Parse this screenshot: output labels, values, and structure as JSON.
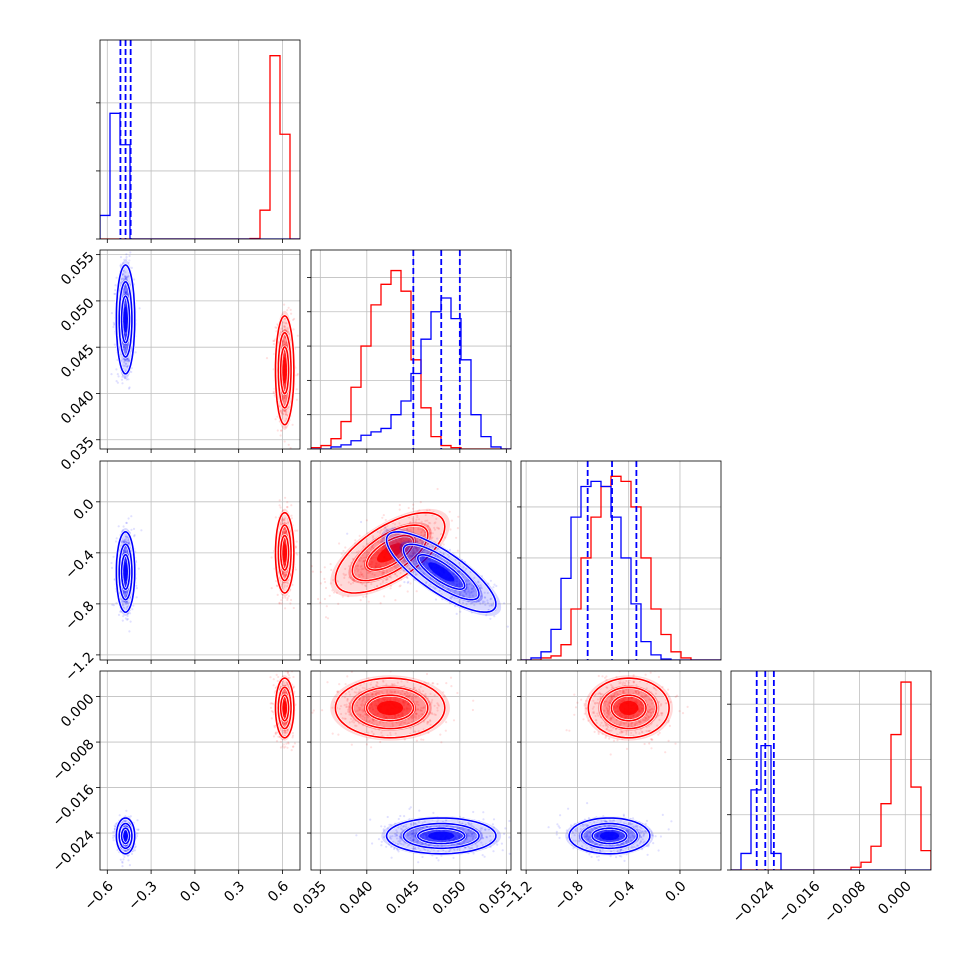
{
  "colors": {
    "series_a": "#ff0000",
    "series_b": "#0000ff",
    "grid": "#bfbfbf",
    "frame": "#7f7f7f"
  },
  "chart_data": {
    "type": "corner",
    "parameters": 4,
    "series": [
      {
        "color": "#ff0000",
        "means": [
          0.615,
          0.0425,
          -0.4,
          -0.002
        ],
        "sigmas": [
          0.03,
          0.0028,
          0.15,
          0.0025
        ],
        "correlations": {
          "1-2": 0.65
        }
      },
      {
        "color": "#0000ff",
        "means": [
          -0.475,
          0.048,
          -0.55,
          -0.0245
        ],
        "sigmas": [
          0.03,
          0.0028,
          0.15,
          0.0015
        ],
        "correlations": {
          "1-2": -0.8
        }
      }
    ],
    "quantile_lines": {
      "color": "#0000ff",
      "series": 1,
      "style": "dashed"
    },
    "axes": [
      {
        "range": [
          -0.65,
          0.72
        ],
        "ticks": [
          -0.6,
          -0.3,
          0.0,
          0.3,
          0.6
        ],
        "tick_labels": [
          "−0.6",
          "−0.3",
          "0.0",
          "0.3",
          "0.6"
        ],
        "quantiles": [
          -0.51,
          -0.475,
          -0.44
        ]
      },
      {
        "range": [
          0.034,
          0.0555
        ],
        "ticks": [
          0.035,
          0.04,
          0.045,
          0.05,
          0.055
        ],
        "tick_labels": [
          "0.035",
          "0.040",
          "0.045",
          "0.050",
          "0.055"
        ],
        "quantiles": [
          0.045,
          0.048,
          0.05
        ]
      },
      {
        "range": [
          -1.24,
          0.32
        ],
        "ticks": [
          -1.2,
          -0.8,
          -0.4,
          0.0
        ],
        "tick_labels": [
          "−1.2",
          "−0.8",
          "−0.4",
          "0.0"
        ],
        "quantiles": [
          -0.72,
          -0.53,
          -0.34
        ]
      },
      {
        "range": [
          -0.0305,
          0.0045
        ],
        "ticks": [
          -0.024,
          -0.016,
          -0.008,
          0.0
        ],
        "tick_labels": [
          "−0.024",
          "−0.016",
          "−0.008",
          "0.000"
        ],
        "quantiles": [
          -0.026,
          -0.0245,
          -0.023
        ]
      }
    ],
    "histograms": [
      {
        "bins": [
          -0.65,
          -0.5815,
          -0.513,
          -0.4445,
          -0.376,
          -0.3075,
          -0.239,
          -0.1705,
          -0.102,
          -0.0335,
          0.035,
          0.1035,
          0.172,
          0.2405,
          0.309,
          0.3775,
          0.446,
          0.5145,
          0.583,
          0.6515,
          0.72
        ],
        "counts": [
          [
            0,
            0,
            0,
            0,
            0,
            0,
            0,
            0,
            0,
            0,
            0,
            0,
            0,
            0,
            0,
            2,
            110,
            700,
            400,
            0
          ],
          [
            90,
            480,
            360,
            0,
            0,
            0,
            0,
            0,
            0,
            0,
            0,
            0,
            0,
            0,
            0,
            0,
            0,
            0,
            0,
            0
          ]
        ],
        "count_max": 760,
        "count_ticks": [
          0,
          260,
          520
        ]
      },
      {
        "bins": [
          0.034,
          0.035075,
          0.03615,
          0.037225,
          0.0383,
          0.039375,
          0.04045,
          0.041525,
          0.0426,
          0.043675,
          0.04475,
          0.045825,
          0.0469,
          0.047975,
          0.04905,
          0.050125,
          0.0512,
          0.052275,
          0.05335,
          0.054425,
          0.0555
        ],
        "counts": [
          [
            2,
            5,
            15,
            40,
            90,
            150,
            210,
            240,
            260,
            230,
            130,
            60,
            18,
            5,
            2,
            0,
            0,
            0,
            0,
            0
          ],
          [
            0,
            0,
            3,
            6,
            12,
            20,
            25,
            30,
            50,
            70,
            110,
            160,
            200,
            220,
            190,
            130,
            50,
            18,
            3,
            0
          ]
        ],
        "count_max": 290,
        "count_ticks": [
          0,
          50,
          100,
          150,
          200,
          250
        ]
      },
      {
        "bins": [
          -1.24,
          -1.162,
          -1.084,
          -1.006,
          -0.928,
          -0.85,
          -0.772,
          -0.694,
          -0.616,
          -0.538,
          -0.46,
          -0.382,
          -0.304,
          -0.226,
          -0.148,
          -0.07,
          0.008,
          0.086,
          0.164,
          0.242,
          0.32
        ],
        "counts": [
          [
            0,
            0,
            2,
            4,
            15,
            50,
            100,
            140,
            170,
            180,
            175,
            150,
            100,
            50,
            25,
            8,
            2,
            0,
            0,
            0
          ],
          [
            0,
            2,
            8,
            30,
            80,
            140,
            170,
            175,
            170,
            140,
            100,
            55,
            18,
            5,
            1,
            0,
            0,
            0,
            0,
            0
          ]
        ],
        "count_max": 195,
        "count_ticks": [
          0,
          50,
          100,
          150
        ]
      },
      {
        "bins": [
          -0.0305,
          -0.02875,
          -0.027,
          -0.02525,
          -0.0235,
          -0.02175,
          -0.02,
          -0.01825,
          -0.0165,
          -0.01475,
          -0.013,
          -0.01125,
          -0.0095,
          -0.00775,
          -0.006,
          -0.00425,
          -0.0025,
          -0.00075,
          0.001,
          0.00275,
          0.0045
        ],
        "counts": [
          [
            0,
            0,
            0,
            0,
            0,
            0,
            0,
            0,
            0,
            0,
            0,
            0,
            5,
            14,
            43,
            120,
            245,
            340,
            150,
            35
          ],
          [
            0,
            30,
            145,
            225,
            30,
            0,
            0,
            0,
            0,
            0,
            0,
            0,
            0,
            0,
            0,
            0,
            0,
            0,
            0,
            0
          ]
        ],
        "count_max": 360,
        "count_ticks": [
          0,
          100,
          200,
          300
        ]
      }
    ]
  }
}
